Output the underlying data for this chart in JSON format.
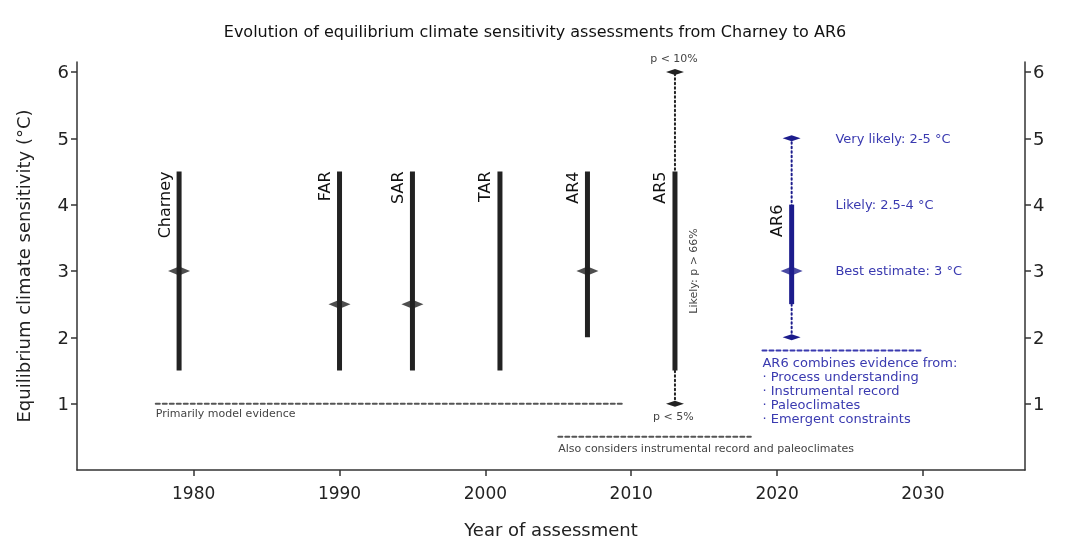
{
  "chart_data": {
    "type": "bar",
    "title": "Evolution of equilibrium climate sensitivity assessments from Charney to AR6",
    "xlabel": "Year of assessment",
    "ylabel": "Equilibrium climate sensitivity (°C)",
    "xlim": [
      1972,
      2037
    ],
    "xticks": [
      1980,
      1990,
      2000,
      2010,
      2020,
      2030
    ],
    "ylim": [
      0,
      6.15
    ],
    "yticks": [
      1,
      2,
      3,
      4,
      5,
      6
    ],
    "y2lim": [
      0,
      6.15
    ],
    "y2ticks": [
      1,
      2,
      3,
      4,
      5,
      6
    ],
    "grid": false,
    "legend": false,
    "series": [
      {
        "type": "line",
        "x": [
          2013,
          2013
        ],
        "values": [
          1,
          6
        ],
        "color": "#222222",
        "line_style": "dotted",
        "marker": "diamond"
      },
      {
        "type": "line",
        "x": [
          2021,
          2021
        ],
        "values": [
          2,
          5
        ],
        "color": "#1c1c8c",
        "line_style": "dotted",
        "marker": "diamond"
      },
      {
        "name": "Charney",
        "x": [
          1979
        ],
        "base": [
          1.5
        ],
        "values": [
          3
        ],
        "color": "#222222"
      },
      {
        "name": "FAR",
        "x": [
          1990
        ],
        "base": [
          1.5
        ],
        "values": [
          3
        ],
        "color": "#222222"
      },
      {
        "name": "SAR",
        "x": [
          1995
        ],
        "base": [
          1.5
        ],
        "values": [
          3
        ],
        "color": "#222222"
      },
      {
        "name": "TAR",
        "x": [
          2001
        ],
        "base": [
          1.5
        ],
        "values": [
          3
        ],
        "color": "#222222"
      },
      {
        "name": "AR4",
        "x": [
          2007
        ],
        "base": [
          2
        ],
        "values": [
          2.5
        ],
        "color": "#222222"
      },
      {
        "name": "AR5",
        "x": [
          2013
        ],
        "base": [
          1.5
        ],
        "values": [
          3
        ],
        "color": "#222222"
      },
      {
        "name": "AR6",
        "x": [
          2021
        ],
        "base": [
          2.5
        ],
        "values": [
          1.5
        ],
        "color": "#1c1c8c"
      },
      {
        "type": "scatter",
        "x": [
          1979,
          1990,
          1995,
          2007
        ],
        "values": [
          3,
          2.5,
          2.5,
          3
        ],
        "color": "#222222",
        "marker": "diamond"
      },
      {
        "type": "scatter",
        "x": [
          2021
        ],
        "values": [
          3
        ],
        "color": "#1c1c8c",
        "marker": "diamond"
      },
      {
        "type": "line",
        "x": [
          1977.4,
          2009.4
        ],
        "values": [
          1,
          1
        ],
        "color": "#555555",
        "line_style": "dashed",
        "marker": "none"
      },
      {
        "type": "line",
        "x": [
          2005,
          2018.2
        ],
        "values": [
          0.5,
          0.5
        ],
        "color": "#555555",
        "line_style": "dashed",
        "marker": "none"
      },
      {
        "type": "line",
        "x": [
          2019,
          2030
        ],
        "values": [
          1.8,
          1.8
        ],
        "color": "#3a3ab0",
        "line_style": "dashed",
        "marker": "none"
      }
    ],
    "annotations": [
      "p < 10%",
      "p < 5%",
      "Likely: p > 66%",
      "Very likely: 2-5 °C",
      "Likely: 2.5-4 °C",
      "Best estimate: 3 °C",
      "AR6 combines evidence from:\n· Process understanding\n· Instrumental record\n· Paleoclimates\n· Emergent constraints",
      "Primarily model evidence",
      "Also considers instrumental record and paleoclimates"
    ]
  }
}
